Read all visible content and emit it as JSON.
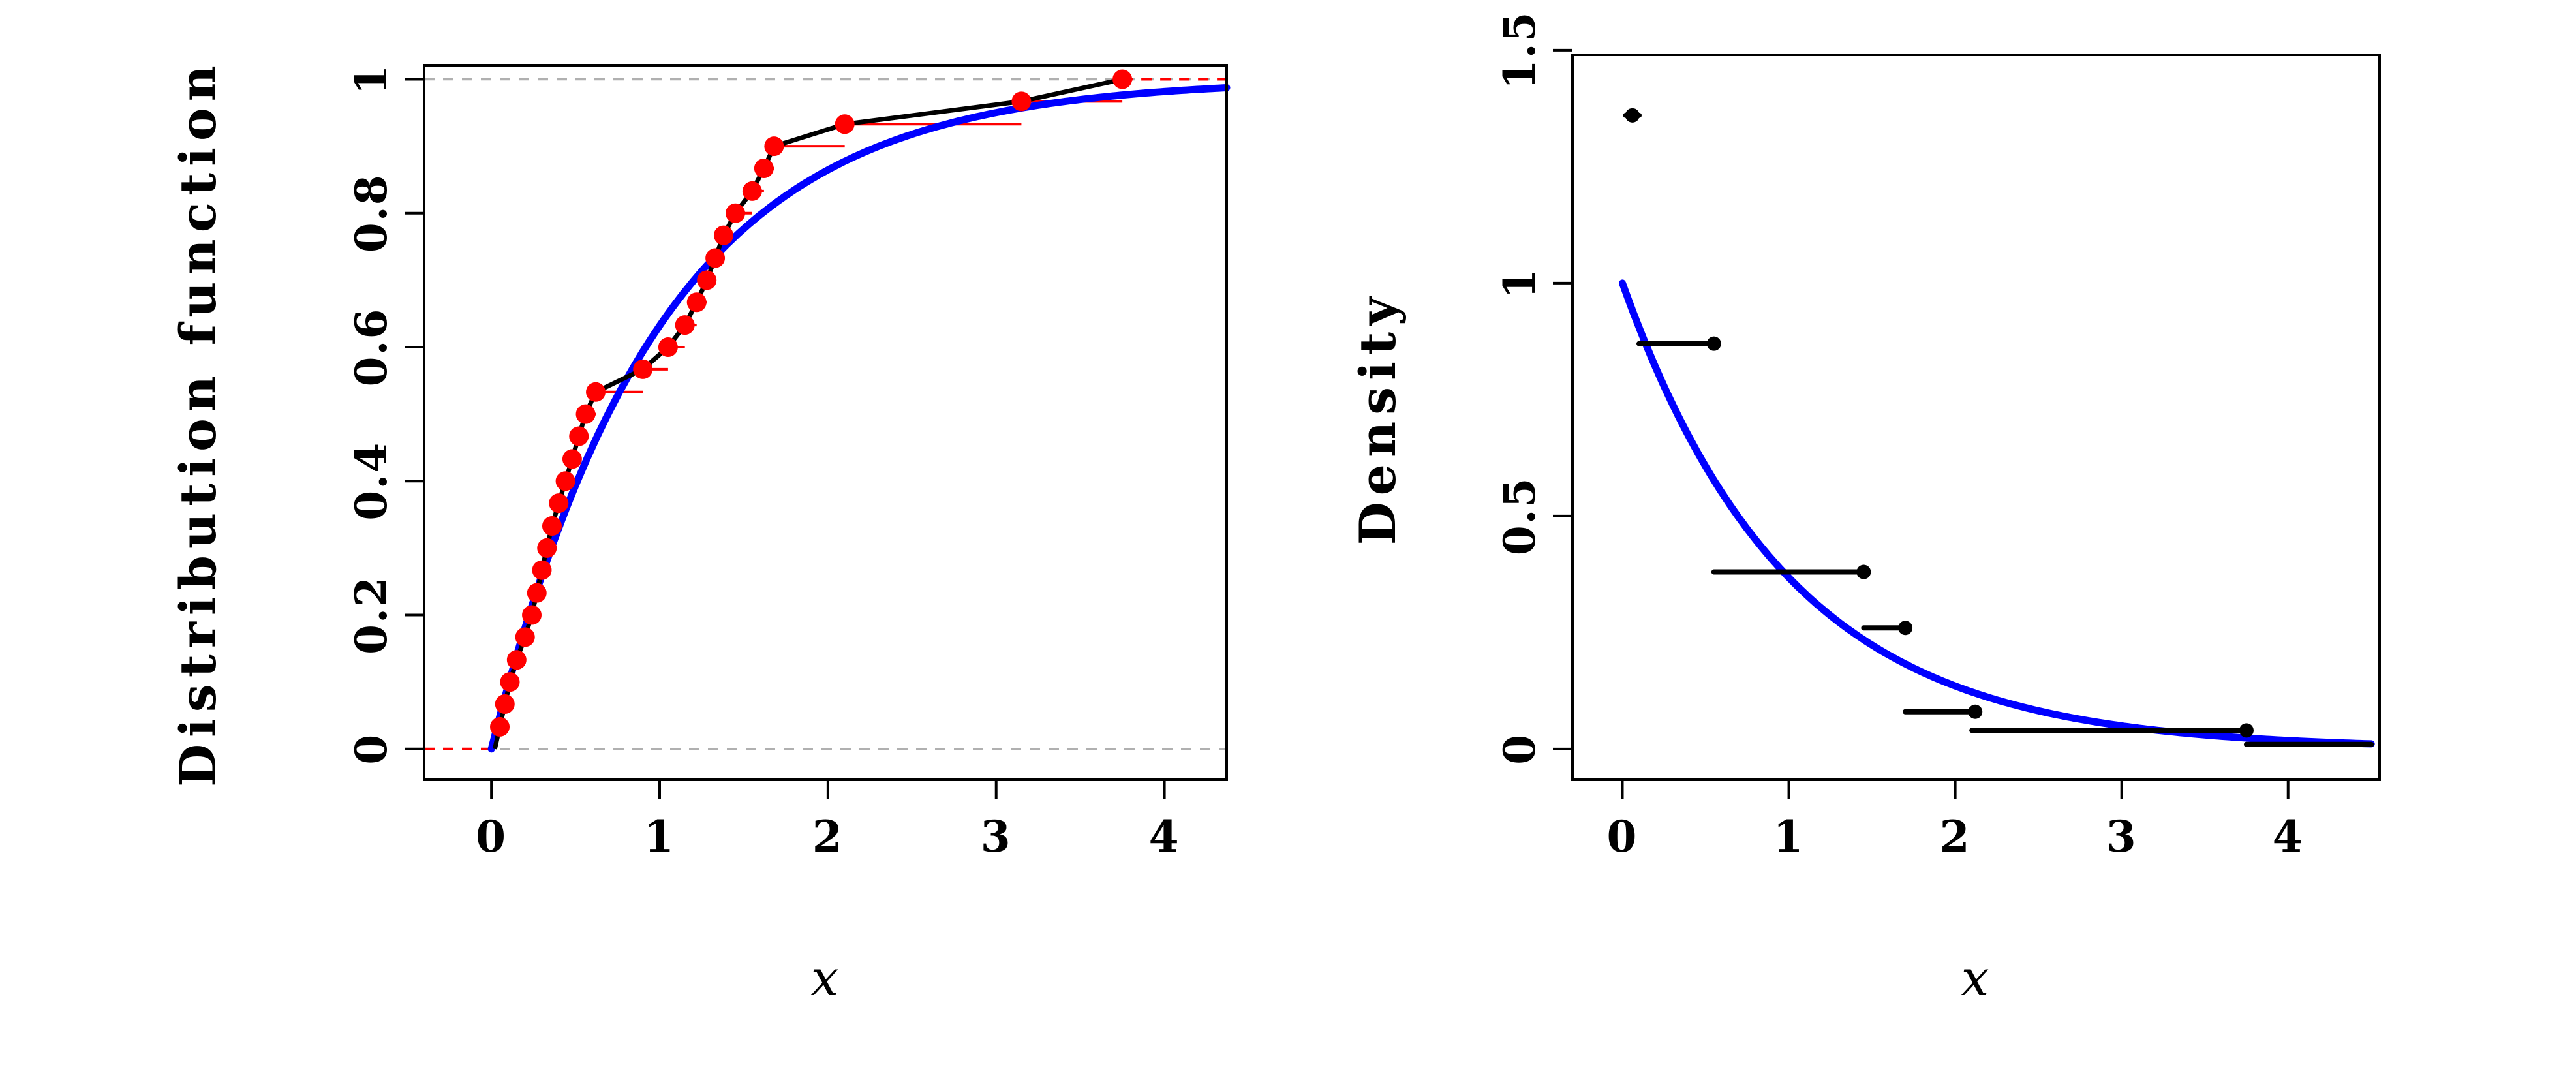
{
  "page": {
    "background": "#ffffff"
  },
  "chart_data": [
    {
      "type": "line",
      "panel": "left",
      "title": "",
      "xlabel": "x",
      "ylabel": "Distribution function",
      "xlim": [
        -0.4,
        4.37
      ],
      "ylim": [
        -0.046,
        1.021
      ],
      "xticks": [
        0,
        1,
        2,
        3,
        4
      ],
      "xtick_labels": [
        "0",
        "1",
        "2",
        "3",
        "4"
      ],
      "yticks": [
        0,
        0.2,
        0.4,
        0.6,
        0.8,
        1
      ],
      "ytick_labels": [
        "0",
        "0.2",
        "0.4",
        "0.6",
        "0.8",
        "1"
      ],
      "grid": false,
      "legend": null,
      "reference_lines": {
        "y": [
          0,
          1
        ],
        "color": "#b0b0b0",
        "dash": "16 13",
        "width": 3.5
      },
      "ecdf": {
        "color": "#ff0000",
        "point_radius": 15,
        "step_width": 4,
        "points": [
          [
            0.05,
            0.033
          ],
          [
            0.08,
            0.067
          ],
          [
            0.11,
            0.1
          ],
          [
            0.15,
            0.133
          ],
          [
            0.2,
            0.167
          ],
          [
            0.24,
            0.2
          ],
          [
            0.27,
            0.233
          ],
          [
            0.3,
            0.267
          ],
          [
            0.33,
            0.3
          ],
          [
            0.36,
            0.333
          ],
          [
            0.4,
            0.367
          ],
          [
            0.44,
            0.4
          ],
          [
            0.48,
            0.433
          ],
          [
            0.52,
            0.467
          ],
          [
            0.56,
            0.5
          ],
          [
            0.62,
            0.533
          ],
          [
            0.9,
            0.567
          ],
          [
            1.05,
            0.6
          ],
          [
            1.15,
            0.633
          ],
          [
            1.22,
            0.667
          ],
          [
            1.28,
            0.7
          ],
          [
            1.33,
            0.733
          ],
          [
            1.38,
            0.767
          ],
          [
            1.45,
            0.8
          ],
          [
            1.55,
            0.833
          ],
          [
            1.62,
            0.867
          ],
          [
            1.68,
            0.9
          ],
          [
            2.1,
            0.933
          ],
          [
            3.15,
            0.967
          ],
          [
            3.75,
            1.0
          ]
        ]
      },
      "ogive": {
        "color": "#000000",
        "width": 7,
        "start": [
          0.02,
          0.0
        ]
      },
      "fit": {
        "type": "exponential_cdf",
        "rate": 1.0,
        "color": "#0000ff",
        "width": 11,
        "x_from": 0.0,
        "x_to": 4.37
      }
    },
    {
      "type": "histogram",
      "panel": "right",
      "title": "",
      "xlabel": "x",
      "ylabel": "Density",
      "xlim": [
        -0.3,
        4.55
      ],
      "ylim": [
        -0.066,
        1.49
      ],
      "xticks": [
        0,
        1,
        2,
        3,
        4
      ],
      "xtick_labels": [
        "0",
        "1",
        "2",
        "3",
        "4"
      ],
      "yticks": [
        0,
        0.5,
        1,
        1.5
      ],
      "ytick_labels": [
        "0",
        "0.5",
        "1",
        "1.5"
      ],
      "grid": false,
      "legend": null,
      "bins": [
        {
          "x0": 0.02,
          "x1": 0.1,
          "density": 1.36
        },
        {
          "x0": 0.1,
          "x1": 0.55,
          "density": 0.87
        },
        {
          "x0": 0.55,
          "x1": 1.45,
          "density": 0.38
        },
        {
          "x0": 1.45,
          "x1": 1.7,
          "density": 0.26
        },
        {
          "x0": 1.7,
          "x1": 2.1,
          "density": 0.08
        },
        {
          "x0": 2.1,
          "x1": 3.75,
          "density": 0.04
        },
        {
          "x0": 3.75,
          "x1": 4.5,
          "density": 0.01
        }
      ],
      "bin_style": {
        "color": "#000000",
        "width": 8,
        "dot_radius": 11
      },
      "dots": [
        [
          0.06,
          1.36
        ],
        [
          0.55,
          0.87
        ],
        [
          1.45,
          0.38
        ],
        [
          1.7,
          0.26
        ],
        [
          2.12,
          0.08
        ],
        [
          3.75,
          0.04
        ]
      ],
      "fit": {
        "type": "exponential_pdf",
        "rate": 1.0,
        "color": "#0000ff",
        "width": 11,
        "x_from": 0.0,
        "x_to": 4.5
      }
    }
  ]
}
